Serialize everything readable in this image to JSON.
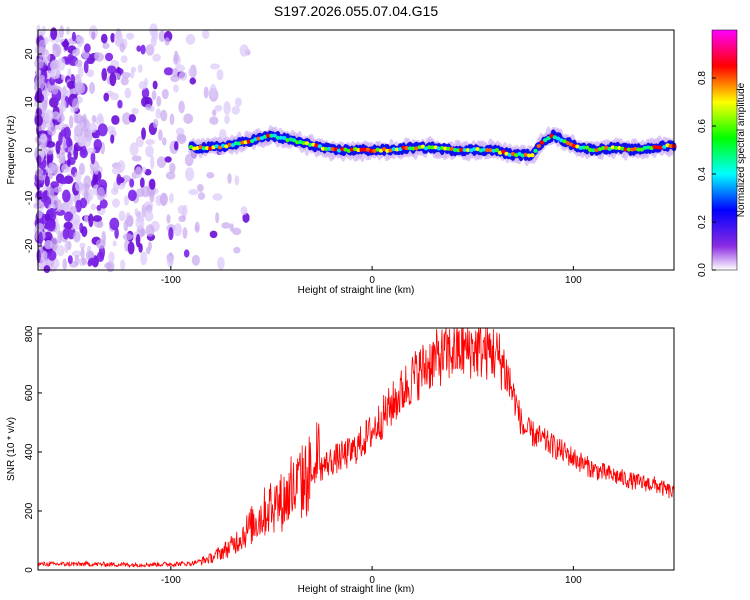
{
  "title": "S197.2026.055.07.04.G15",
  "chart_data": [
    {
      "type": "heatmap",
      "name": "spectrogram",
      "xlabel": "Height of straight line (km)",
      "ylabel": "Frequency (Hz)",
      "xlim": [
        -166,
        150
      ],
      "ylim": [
        -25,
        25
      ],
      "x_ticks": [
        -100,
        0,
        100
      ],
      "y_ticks": [
        -20,
        -10,
        0,
        10,
        20
      ],
      "colorbar": {
        "label": "Normalized spectral amplitude",
        "range": [
          0,
          1
        ],
        "ticks": [
          "0.0",
          "0.2",
          "0.4",
          "0.6",
          "0.8"
        ],
        "colors": [
          "#ffffff",
          "#8a2be2",
          "#0000ff",
          "#00ffff",
          "#00ff00",
          "#ffff00",
          "#ff0000",
          "#ff00ff"
        ]
      },
      "noise_region_x": [
        -166,
        -60
      ],
      "signal_track": [
        {
          "x": -90,
          "f": 0.5
        },
        {
          "x": -80,
          "f": 0.5
        },
        {
          "x": -70,
          "f": 1.0
        },
        {
          "x": -60,
          "f": 2.0
        },
        {
          "x": -50,
          "f": 3.0
        },
        {
          "x": -40,
          "f": 2.0
        },
        {
          "x": -30,
          "f": 1.0
        },
        {
          "x": -20,
          "f": 0.0
        },
        {
          "x": -10,
          "f": 0.0
        },
        {
          "x": 0,
          "f": 0.0
        },
        {
          "x": 10,
          "f": 0.0
        },
        {
          "x": 20,
          "f": 0.5
        },
        {
          "x": 30,
          "f": 0.5
        },
        {
          "x": 40,
          "f": 0.0
        },
        {
          "x": 50,
          "f": 0.0
        },
        {
          "x": 60,
          "f": 0.0
        },
        {
          "x": 70,
          "f": -1.0
        },
        {
          "x": 80,
          "f": -1.0
        },
        {
          "x": 85,
          "f": 2.0
        },
        {
          "x": 90,
          "f": 3.0
        },
        {
          "x": 100,
          "f": 1.0
        },
        {
          "x": 110,
          "f": 0.0
        },
        {
          "x": 120,
          "f": 0.5
        },
        {
          "x": 130,
          "f": 0.0
        },
        {
          "x": 140,
          "f": 0.5
        },
        {
          "x": 150,
          "f": 1.0
        }
      ]
    },
    {
      "type": "line",
      "name": "snr",
      "xlabel": "Height of straight line (km)",
      "ylabel": "SNR (10 * v/v)",
      "xlim": [
        -166,
        150
      ],
      "ylim": [
        0,
        820
      ],
      "x_ticks": [
        -100,
        0,
        100
      ],
      "y_ticks": [
        0,
        200,
        400,
        600,
        800
      ],
      "color": "#ff0000",
      "series": [
        {
          "name": "SNR",
          "x": [
            -166,
            -140,
            -120,
            -100,
            -90,
            -80,
            -70,
            -60,
            -50,
            -45,
            -40,
            -30,
            -20,
            -10,
            0,
            10,
            20,
            30,
            40,
            50,
            60,
            65,
            70,
            75,
            80,
            90,
            100,
            110,
            120,
            130,
            140,
            150
          ],
          "values": [
            20,
            20,
            18,
            20,
            22,
            40,
            80,
            150,
            220,
            230,
            260,
            330,
            370,
            400,
            470,
            560,
            650,
            710,
            740,
            750,
            740,
            700,
            600,
            480,
            460,
            420,
            380,
            340,
            320,
            300,
            290,
            260
          ]
        }
      ]
    }
  ]
}
